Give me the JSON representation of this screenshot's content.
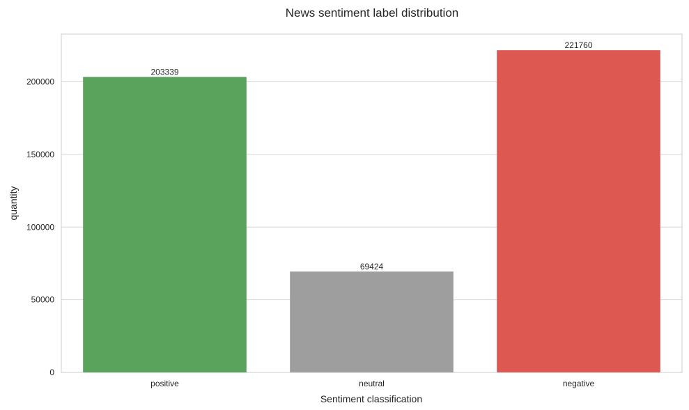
{
  "chart_data": {
    "type": "bar",
    "title": "News sentiment label distribution",
    "xlabel": "Sentiment classification",
    "ylabel": "quantity",
    "categories": [
      "positive",
      "neutral",
      "negative"
    ],
    "values": [
      203339,
      69424,
      221760
    ],
    "data_labels": [
      "203339",
      "69424",
      "221760"
    ],
    "colors": [
      "#59a35c",
      "#9e9e9e",
      "#dd5850"
    ],
    "ylim": [
      0,
      232848
    ],
    "yticks": [
      0,
      50000,
      100000,
      150000,
      200000
    ],
    "ytick_labels": [
      "0",
      "50000",
      "100000",
      "150000",
      "200000"
    ],
    "grid": "horizontal",
    "legend": "none"
  }
}
